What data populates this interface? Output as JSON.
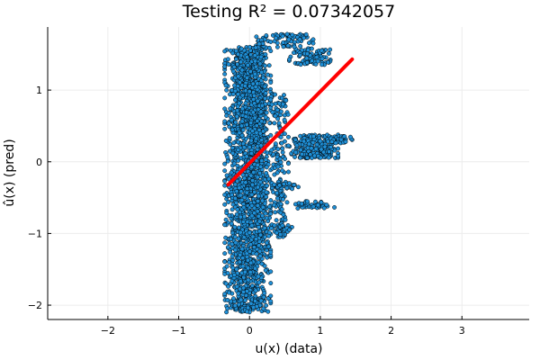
{
  "chart_data": {
    "type": "scatter",
    "title": "Testing R² = 0.07342057",
    "xlabel": "u(x) (data)",
    "ylabel": "û(x) (pred)",
    "xlim": [
      -2.85,
      3.95
    ],
    "ylim": [
      -2.2,
      1.88
    ],
    "xticks": [
      -2,
      -1,
      0,
      1,
      2,
      3
    ],
    "yticks": [
      -2,
      -1,
      0,
      1
    ],
    "tick_labels_x": [
      "−2",
      "−1",
      "0",
      "1",
      "2",
      "3"
    ],
    "tick_labels_y": [
      "−2",
      "−1",
      "0",
      "1"
    ],
    "grid": true,
    "legend": "none",
    "colors": {
      "points": "#1f8fd6",
      "point_edge": "#000000",
      "fit_line": "#ff0000",
      "grid": "#ececec"
    },
    "series": [
      {
        "kind": "scatter",
        "clusters": [
          {
            "x": [
              -0.35,
              0.3
            ],
            "y": [
              -2.1,
              1.6
            ],
            "n": 1700
          },
          {
            "x": [
              0.0,
              0.28
            ],
            "y": [
              -1.2,
              1.78
            ],
            "n": 350
          },
          {
            "x": [
              0.3,
              0.55
            ],
            "y": [
              -1.0,
              0.95
            ],
            "n": 160
          },
          {
            "x": [
              0.55,
              1.25
            ],
            "y": [
              0.05,
              0.38
            ],
            "n": 220
          },
          {
            "x": [
              1.1,
              1.45
            ],
            "y": [
              0.26,
              0.36
            ],
            "n": 45
          },
          {
            "x": [
              0.55,
              1.2
            ],
            "y": [
              1.35,
              1.58
            ],
            "n": 90
          },
          {
            "x": [
              0.3,
              0.9
            ],
            "y": [
              1.6,
              1.78
            ],
            "n": 70
          },
          {
            "x": [
              0.6,
              1.2
            ],
            "y": [
              -0.65,
              -0.55
            ],
            "n": 40
          },
          {
            "x": [
              0.3,
              0.7
            ],
            "y": [
              -0.38,
              -0.28
            ],
            "n": 35
          },
          {
            "x": [
              0.3,
              0.6
            ],
            "y": [
              -1.05,
              -0.88
            ],
            "n": 30
          }
        ]
      },
      {
        "kind": "line",
        "x": [
          -0.3,
          1.45
        ],
        "y": [
          -0.32,
          1.43
        ]
      }
    ]
  }
}
